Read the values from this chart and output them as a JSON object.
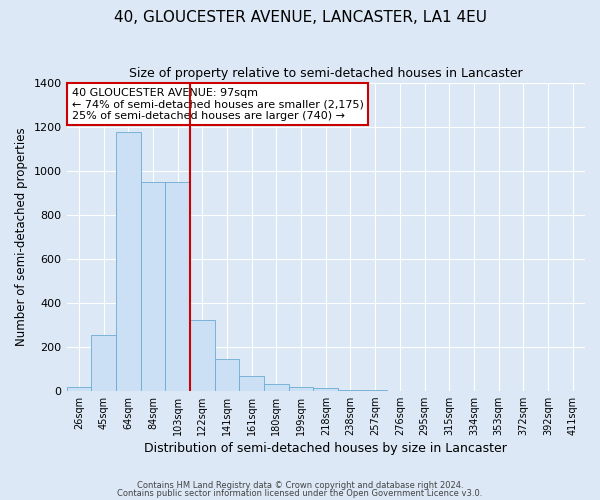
{
  "title": "40, GLOUCESTER AVENUE, LANCASTER, LA1 4EU",
  "subtitle": "Size of property relative to semi-detached houses in Lancaster",
  "xlabel": "Distribution of semi-detached houses by size in Lancaster",
  "ylabel": "Number of semi-detached properties",
  "bar_labels": [
    "26sqm",
    "45sqm",
    "64sqm",
    "84sqm",
    "103sqm",
    "122sqm",
    "141sqm",
    "161sqm",
    "180sqm",
    "199sqm",
    "218sqm",
    "238sqm",
    "257sqm",
    "276sqm",
    "295sqm",
    "315sqm",
    "334sqm",
    "353sqm",
    "372sqm",
    "392sqm",
    "411sqm"
  ],
  "bar_values": [
    15,
    255,
    1175,
    950,
    950,
    320,
    145,
    65,
    30,
    15,
    10,
    5,
    5,
    0,
    0,
    0,
    0,
    0,
    0,
    0,
    0
  ],
  "bar_color": "#cce0f5",
  "bar_edge_color": "#6aaad4",
  "vline_color": "#cc0000",
  "annotation_title": "40 GLOUCESTER AVENUE: 97sqm",
  "annotation_line1": "← 74% of semi-detached houses are smaller (2,175)",
  "annotation_line2": "25% of semi-detached houses are larger (740) →",
  "annotation_box_color": "#ffffff",
  "annotation_box_edge": "#cc0000",
  "ylim": [
    0,
    1400
  ],
  "yticks": [
    0,
    200,
    400,
    600,
    800,
    1000,
    1200,
    1400
  ],
  "bg_color": "#dce8f5",
  "plot_bg_color": "#dce8f5",
  "footer1": "Contains HM Land Registry data © Crown copyright and database right 2024.",
  "footer2": "Contains public sector information licensed under the Open Government Licence v3.0.",
  "title_fontsize": 11,
  "subtitle_fontsize": 9,
  "xlabel_fontsize": 9,
  "ylabel_fontsize": 8.5
}
